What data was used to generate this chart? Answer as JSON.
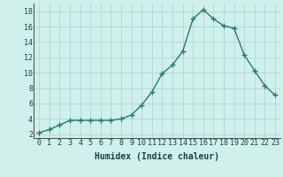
{
  "x": [
    0,
    1,
    2,
    3,
    4,
    5,
    6,
    7,
    8,
    9,
    10,
    11,
    12,
    13,
    14,
    15,
    16,
    17,
    18,
    19,
    20,
    21,
    22,
    23
  ],
  "y": [
    2.2,
    2.6,
    3.2,
    3.8,
    3.8,
    3.8,
    3.8,
    3.8,
    4.0,
    4.5,
    5.8,
    7.5,
    9.9,
    11.0,
    12.8,
    17.0,
    18.2,
    17.0,
    16.1,
    15.8,
    12.3,
    10.3,
    8.3,
    7.1
  ],
  "line_color": "#2d7a6a",
  "marker": "+",
  "marker_size": 4,
  "bg_color": "#cff0eb",
  "grid_color": "#b0d8d2",
  "xlabel": "Humidex (Indice chaleur)",
  "xlabel_fontsize": 7,
  "tick_fontsize": 6,
  "ylim": [
    1.5,
    19
  ],
  "yticks": [
    2,
    4,
    6,
    8,
    10,
    12,
    14,
    16,
    18
  ],
  "xticks": [
    0,
    1,
    2,
    3,
    4,
    5,
    6,
    7,
    8,
    9,
    10,
    11,
    12,
    13,
    14,
    15,
    16,
    17,
    18,
    19,
    20,
    21,
    22,
    23
  ],
  "line_width": 1.0
}
